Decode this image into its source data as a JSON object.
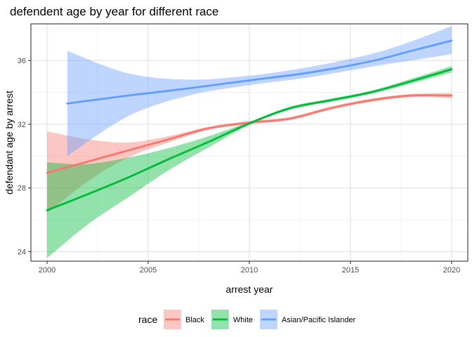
{
  "chart_data": {
    "type": "line",
    "title": "defendent age by year for different race",
    "xlabel": "arrest year",
    "ylabel": "defendant age by arrest",
    "xlim": [
      1999.2,
      2020.8
    ],
    "ylim": [
      23.4,
      38.3
    ],
    "x_ticks": [
      2000,
      2005,
      2010,
      2015,
      2020
    ],
    "y_ticks": [
      24,
      28,
      32,
      36
    ],
    "grid": true,
    "legend": {
      "title": "race",
      "position": "bottom"
    },
    "series": [
      {
        "name": "Black",
        "color": "#F8766D",
        "x": [
          2000,
          2002,
          2004,
          2006,
          2008,
          2010,
          2012,
          2014,
          2016,
          2018,
          2020
        ],
        "y": [
          28.95,
          29.65,
          30.35,
          31.05,
          31.75,
          32.1,
          32.35,
          33.0,
          33.5,
          33.8,
          33.8
        ],
        "lower": [
          26.4,
          28.4,
          29.9,
          30.85,
          31.65,
          32.0,
          32.25,
          32.9,
          33.4,
          33.7,
          33.65
        ],
        "upper": [
          31.55,
          31.05,
          30.85,
          31.25,
          31.85,
          32.2,
          32.45,
          33.1,
          33.6,
          33.9,
          33.95
        ]
      },
      {
        "name": "White",
        "color": "#00BA38",
        "x": [
          2000,
          2002,
          2004,
          2006,
          2008,
          2010,
          2012,
          2014,
          2016,
          2018,
          2020
        ],
        "y": [
          26.6,
          27.6,
          28.65,
          29.8,
          30.9,
          32.05,
          33.0,
          33.5,
          34.0,
          34.7,
          35.45
        ],
        "lower": [
          23.6,
          25.7,
          27.4,
          29.1,
          30.55,
          31.95,
          32.9,
          33.4,
          33.9,
          34.55,
          35.25
        ],
        "upper": [
          29.6,
          29.5,
          29.9,
          30.5,
          31.25,
          32.15,
          33.1,
          33.6,
          34.1,
          34.85,
          35.65
        ]
      },
      {
        "name": "Asian/Pacific Islander",
        "color": "#619CFF",
        "x": [
          2001,
          2004,
          2007,
          2010,
          2013,
          2016,
          2018,
          2020
        ],
        "y": [
          33.3,
          33.8,
          34.25,
          34.75,
          35.25,
          35.95,
          36.6,
          37.25
        ],
        "lower": [
          30.0,
          32.5,
          33.8,
          34.45,
          34.95,
          35.6,
          36.0,
          36.4
        ],
        "upper": [
          36.6,
          35.2,
          34.8,
          35.05,
          35.6,
          36.4,
          37.2,
          38.15
        ]
      }
    ]
  }
}
